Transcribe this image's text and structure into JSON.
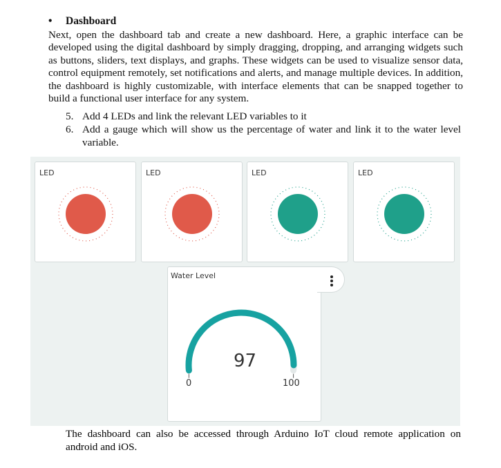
{
  "document": {
    "heading": "Dashboard",
    "paragraph": "Next, open the dashboard tab and create a new dashboard. Here, a graphic interface can be developed using the digital dashboard by simply dragging, dropping, and arranging widgets such as buttons, sliders, text displays, and graphs. These widgets can be used to visualize sensor data, control equipment remotely, set notifications and alerts, and manage multiple devices. In addition, the dashboard is highly customizable, with interface elements that can be snapped together to build a functional user interface for any system.",
    "steps": [
      {
        "number": "5.",
        "text": "Add 4 LEDs and link the relevant LED variables to it"
      },
      {
        "number": "6.",
        "text": "Add a gauge which will show us the percentage of water and link it to the water level variable."
      }
    ],
    "closing": "The dashboard can also be accessed through Arduino IoT cloud remote application on android and iOS."
  },
  "dashboard": {
    "leds": [
      {
        "label": "LED",
        "state": "off",
        "color": "#e05a4a",
        "ring_color": "#e05a4a"
      },
      {
        "label": "LED",
        "state": "off",
        "color": "#e05a4a",
        "ring_color": "#e05a4a"
      },
      {
        "label": "LED",
        "state": "on",
        "color": "#1fa08a",
        "ring_color": "#1fa08a"
      },
      {
        "label": "LED",
        "state": "on",
        "color": "#1fa08a",
        "ring_color": "#1fa08a"
      }
    ],
    "gauge": {
      "label": "Water Level",
      "value": 97,
      "value_text": "97",
      "min": 0,
      "max": 100,
      "min_text": "0",
      "max_text": "100",
      "color": "#17a2a1",
      "menu_icon": "kebab-menu-icon"
    }
  }
}
